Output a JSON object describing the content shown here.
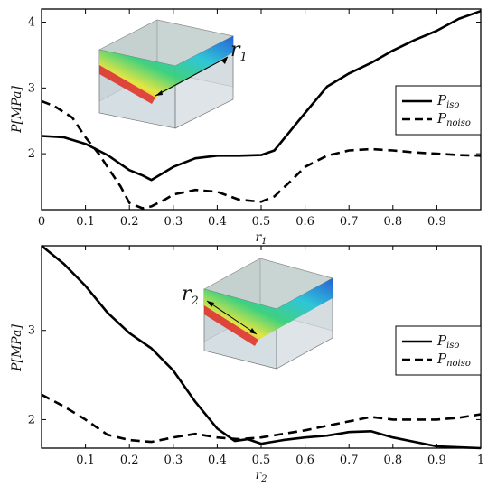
{
  "chart_data": [
    {
      "type": "line",
      "xlabel": "r",
      "xlabel_sub": "1",
      "ylabel": "P[MPa]",
      "xlim": [
        0,
        1
      ],
      "ylim": [
        1.15,
        4.2
      ],
      "xticks": [
        0,
        0.1,
        0.2,
        0.3,
        0.4,
        0.5,
        0.6,
        0.7,
        0.8,
        0.9
      ],
      "xtick_labels": [
        "0",
        "0.1",
        "0.2",
        "0.3",
        "0.4",
        "0.5",
        "0.6",
        "0.7",
        "0.8",
        "0.9"
      ],
      "yticks": [
        2,
        3,
        4
      ],
      "ytick_labels": [
        "2",
        "3",
        "4"
      ],
      "grid": false,
      "legend_position": "right",
      "inset": {
        "label": "r",
        "label_sub": "1",
        "colors": [
          "#1e5bd6",
          "#26c4d8",
          "#38d07a",
          "#e6e63a",
          "#f29a2e",
          "#e02b1e"
        ]
      },
      "series": [
        {
          "name": "P",
          "name_sub": "iso",
          "style": "solid",
          "x": [
            0,
            0.05,
            0.1,
            0.15,
            0.2,
            0.23,
            0.25,
            0.3,
            0.35,
            0.4,
            0.45,
            0.5,
            0.53,
            0.6,
            0.65,
            0.7,
            0.75,
            0.8,
            0.85,
            0.9,
            0.95,
            1.0
          ],
          "y": [
            2.27,
            2.25,
            2.15,
            1.98,
            1.75,
            1.67,
            1.6,
            1.8,
            1.93,
            1.97,
            1.97,
            1.98,
            2.05,
            2.62,
            3.02,
            3.22,
            3.38,
            3.57,
            3.73,
            3.87,
            4.05,
            4.17
          ]
        },
        {
          "name": "P",
          "name_sub": "noiso",
          "style": "dashed",
          "x": [
            0,
            0.03,
            0.07,
            0.1,
            0.13,
            0.15,
            0.18,
            0.2,
            0.23,
            0.25,
            0.28,
            0.3,
            0.35,
            0.4,
            0.45,
            0.5,
            0.53,
            0.57,
            0.6,
            0.65,
            0.7,
            0.75,
            0.8,
            0.85,
            0.9,
            0.95,
            1.0
          ],
          "y": [
            2.8,
            2.72,
            2.55,
            2.25,
            2.0,
            1.8,
            1.5,
            1.25,
            1.17,
            1.2,
            1.3,
            1.38,
            1.45,
            1.42,
            1.3,
            1.27,
            1.35,
            1.6,
            1.8,
            1.97,
            2.05,
            2.07,
            2.05,
            2.02,
            2.0,
            1.98,
            1.97
          ]
        }
      ]
    },
    {
      "type": "line",
      "xlabel": "r",
      "xlabel_sub": "2",
      "ylabel": "P[MPa]",
      "xlim": [
        0,
        1
      ],
      "ylim": [
        1.68,
        3.95
      ],
      "xticks": [
        0.1,
        0.2,
        0.3,
        0.4,
        0.5,
        0.6,
        0.7,
        0.8,
        0.9,
        1
      ],
      "xtick_labels": [
        "0.1",
        "0.2",
        "0.3",
        "0.4",
        "0.5",
        "0.6",
        "0.7",
        "0.8",
        "0.9",
        "1"
      ],
      "yticks": [
        2,
        3
      ],
      "ytick_labels": [
        "2",
        "3"
      ],
      "grid": false,
      "legend_position": "right",
      "inset": {
        "label": "r",
        "label_sub": "2",
        "colors": [
          "#1e5bd6",
          "#26c4d8",
          "#38d07a",
          "#e6e63a",
          "#f29a2e",
          "#e02b1e"
        ]
      },
      "series": [
        {
          "name": "P",
          "name_sub": "iso",
          "style": "solid",
          "x": [
            0,
            0.05,
            0.1,
            0.15,
            0.2,
            0.25,
            0.3,
            0.35,
            0.4,
            0.44,
            0.47,
            0.5,
            0.55,
            0.6,
            0.65,
            0.7,
            0.75,
            0.8,
            0.85,
            0.9,
            0.95,
            1.0
          ],
          "y": [
            3.95,
            3.75,
            3.5,
            3.2,
            2.97,
            2.8,
            2.55,
            2.2,
            1.9,
            1.76,
            1.78,
            1.73,
            1.77,
            1.8,
            1.82,
            1.86,
            1.87,
            1.8,
            1.75,
            1.7,
            1.69,
            1.68
          ]
        },
        {
          "name": "P",
          "name_sub": "noiso",
          "style": "dashed",
          "x": [
            0,
            0.05,
            0.1,
            0.15,
            0.2,
            0.25,
            0.3,
            0.35,
            0.4,
            0.45,
            0.5,
            0.55,
            0.6,
            0.65,
            0.7,
            0.75,
            0.8,
            0.85,
            0.9,
            0.95,
            1.0
          ],
          "y": [
            2.28,
            2.15,
            2.0,
            1.83,
            1.77,
            1.75,
            1.8,
            1.84,
            1.8,
            1.78,
            1.8,
            1.84,
            1.88,
            1.93,
            1.98,
            2.03,
            2.0,
            2.0,
            2.0,
            2.02,
            2.06
          ]
        }
      ]
    }
  ]
}
